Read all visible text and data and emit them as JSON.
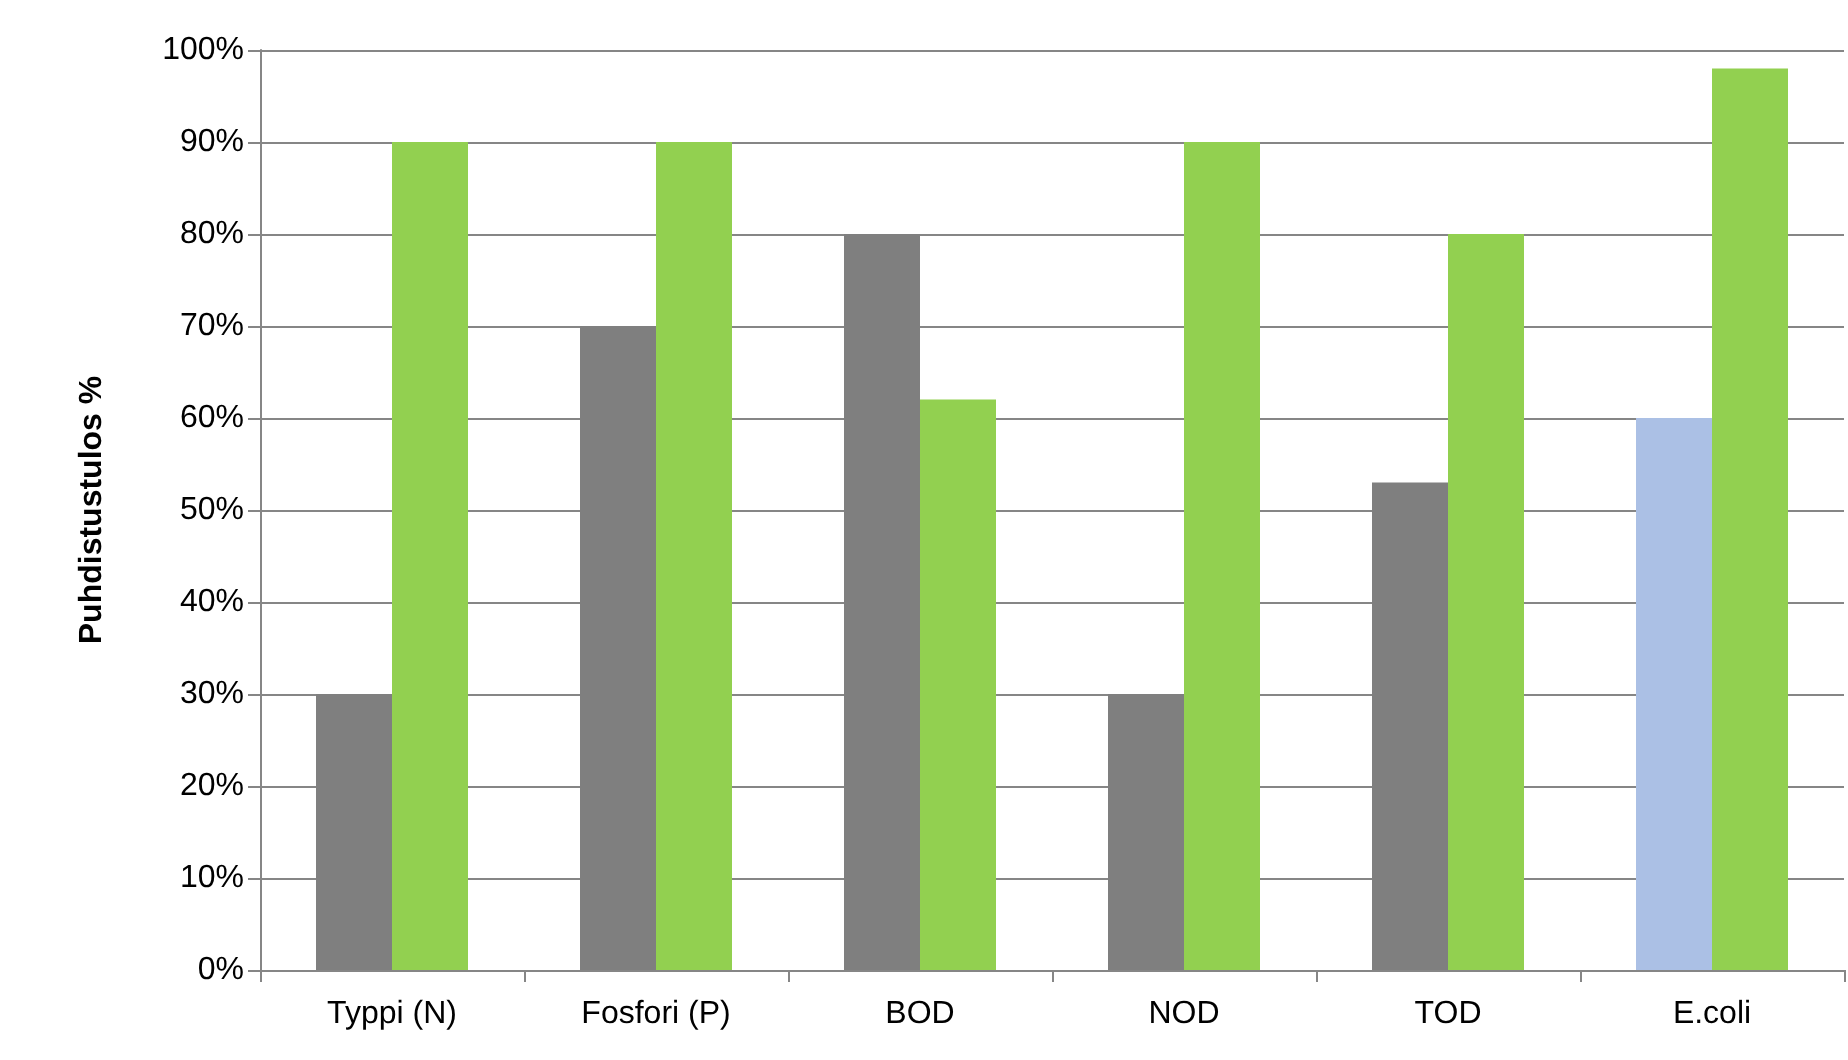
{
  "chart_data": {
    "type": "bar",
    "ylabel": "Puhdistustulos %",
    "categories": [
      "Typpi (N)",
      "Fosfori (P)",
      "BOD",
      "NOD",
      "TOD",
      "E.coli"
    ],
    "series": [
      {
        "color": "#7f7f7f",
        "colors": [
          "#7f7f7f",
          "#7f7f7f",
          "#7f7f7f",
          "#7f7f7f",
          "#7f7f7f",
          "#abc0e5"
        ],
        "values": [
          30,
          70,
          80,
          30,
          53,
          60
        ]
      },
      {
        "color": "#92d050",
        "values": [
          90,
          90,
          62,
          90,
          80,
          98
        ]
      }
    ],
    "ylim": [
      0,
      100
    ],
    "yticks": [
      {
        "value": 0,
        "label": "0%"
      },
      {
        "value": 10,
        "label": "10%"
      },
      {
        "value": 20,
        "label": "20%"
      },
      {
        "value": 30,
        "label": "30%"
      },
      {
        "value": 40,
        "label": "40%"
      },
      {
        "value": 50,
        "label": "50%"
      },
      {
        "value": 60,
        "label": "60%"
      },
      {
        "value": 70,
        "label": "70%"
      },
      {
        "value": 80,
        "label": "80%"
      },
      {
        "value": 90,
        "label": "90%"
      },
      {
        "value": 100,
        "label": "100%"
      }
    ],
    "grid": "y"
  }
}
